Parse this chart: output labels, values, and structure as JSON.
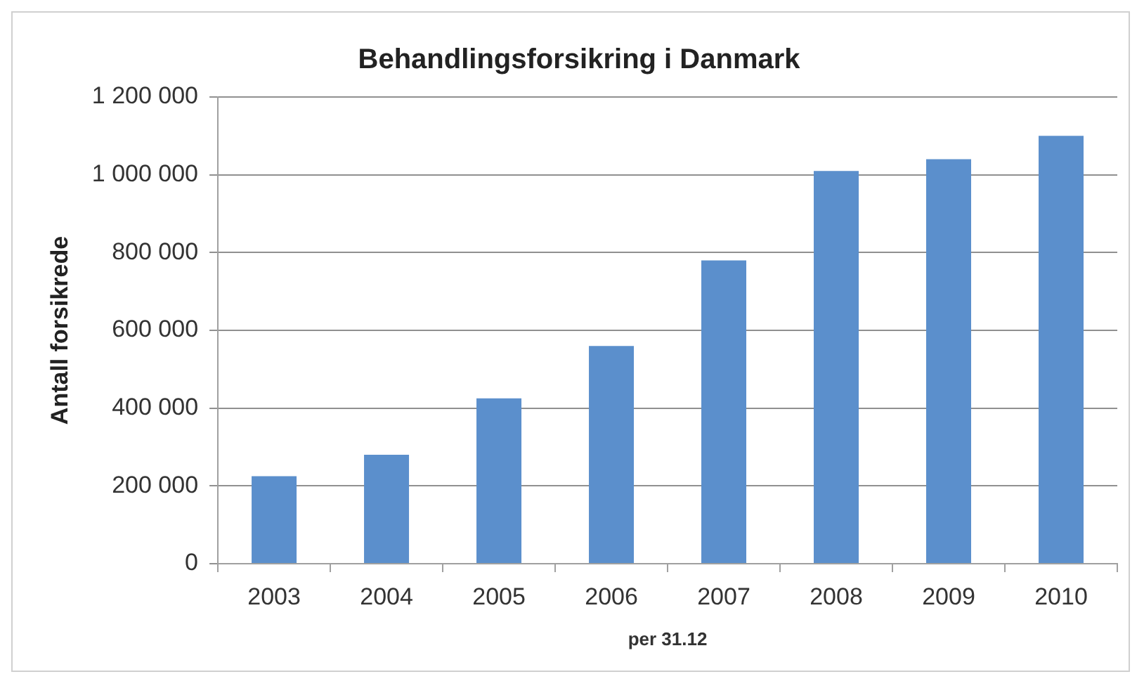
{
  "chart_data": {
    "type": "bar",
    "title": "Behandlingsforsikring i Danmark",
    "xlabel": "per 31.12",
    "ylabel": "Antall forsikrede",
    "categories": [
      "2003",
      "2004",
      "2005",
      "2006",
      "2007",
      "2008",
      "2009",
      "2010"
    ],
    "values": [
      225000,
      280000,
      425000,
      560000,
      780000,
      1010000,
      1040000,
      1100000
    ],
    "color": "#5b8fcc",
    "ylim": [
      0,
      1200000
    ],
    "yticks": [
      0,
      {
        "value": 200000,
        "label": "200 000"
      },
      {
        "value": 400000,
        "label": "400 000"
      },
      {
        "value": 600000,
        "label": "600 000"
      },
      {
        "value": 800000,
        "label": "800 000"
      },
      {
        "value": 1000000,
        "label": "1 000 000"
      },
      {
        "value": 1200000,
        "label": "1 200 000"
      }
    ],
    "grid": "y",
    "legend": false
  }
}
